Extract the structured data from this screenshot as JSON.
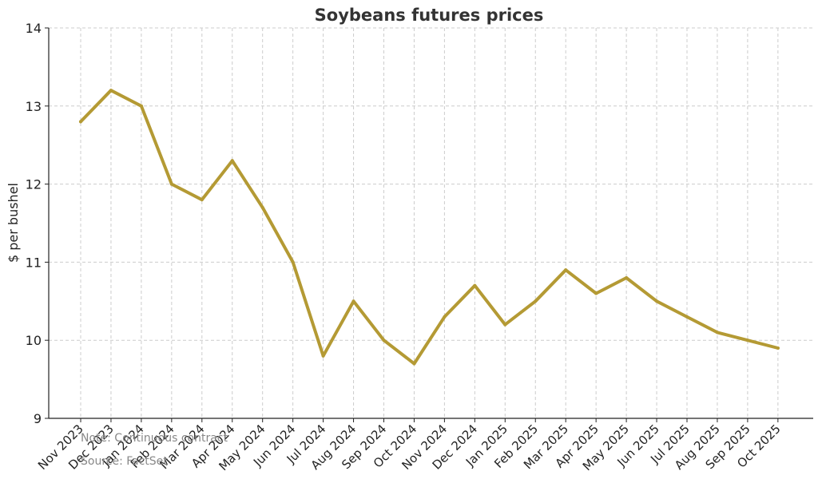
{
  "chart_data": {
    "type": "line",
    "title": "Soybeans futures prices",
    "xlabel": "",
    "ylabel": "$ per bushel",
    "ylim": [
      9,
      14
    ],
    "yticks": [
      "9",
      "10",
      "11",
      "12",
      "13",
      "14"
    ],
    "grid": true,
    "line_color": "#b49a34",
    "categories": [
      "Nov 2023",
      "Dec 2023",
      "Jan 2024",
      "Feb 2024",
      "Mar 2024",
      "Apr 2024",
      "May 2024",
      "Jun 2024",
      "Jul 2024",
      "Aug 2024",
      "Sep 2024",
      "Oct 2024",
      "Nov 2024",
      "Dec 2024",
      "Jan 2025",
      "Feb 2025",
      "Mar 2025",
      "Apr 2025",
      "May 2025",
      "Jun 2025",
      "Jul 2025",
      "Aug 2025",
      "Sep 2025",
      "Oct 2025"
    ],
    "series": [
      {
        "values": [
          12.8,
          13.2,
          13.0,
          12.0,
          11.8,
          12.3,
          11.7,
          11.0,
          9.8,
          10.5,
          10.0,
          9.7,
          10.3,
          10.7,
          10.2,
          10.5,
          10.9,
          10.6,
          10.8,
          10.5,
          10.3,
          10.1,
          10.0,
          9.9
        ]
      }
    ],
    "notes": [
      "Note: Continuous contract",
      "Source: FactSet"
    ]
  }
}
